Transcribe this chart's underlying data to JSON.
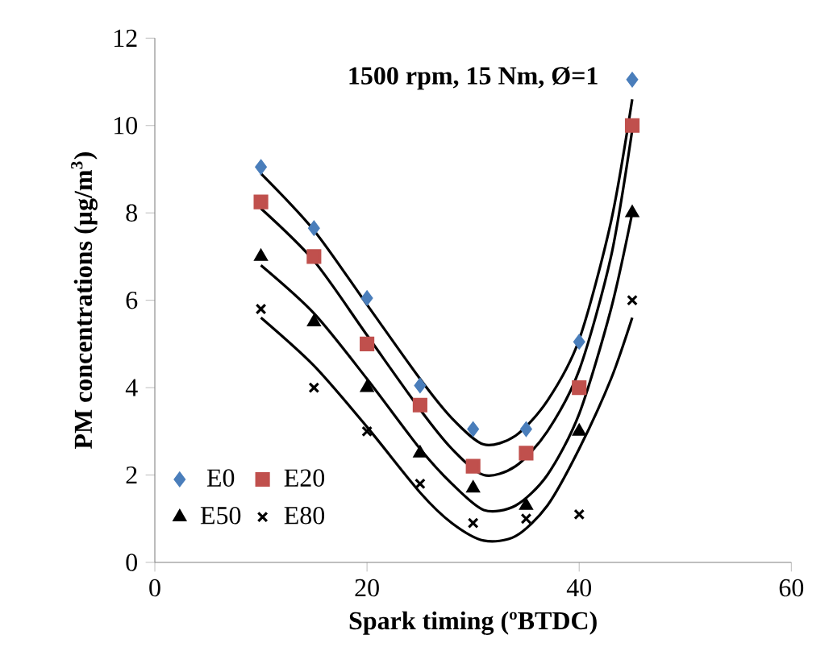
{
  "chart_data": {
    "type": "scatter",
    "title": "1500 rpm, 15 Nm, Ø=1",
    "xlabel": "Spark timing (ºBTDC)",
    "ylabel": "PM concentrations (µg/m$^{3}$)",
    "xlim": [
      0,
      60
    ],
    "xticks": [
      0,
      20,
      40,
      60
    ],
    "ylim": [
      0,
      12
    ],
    "yticks": [
      0,
      2,
      4,
      6,
      8,
      10,
      12
    ],
    "grid": false,
    "legend": "bottom left",
    "series": [
      {
        "name": "E0",
        "color": "#4a7ebb",
        "marker": "diamond",
        "x": [
          10,
          15,
          20,
          25,
          30,
          35,
          40,
          45
        ],
        "values": [
          9.05,
          7.65,
          6.05,
          4.05,
          3.05,
          3.05,
          5.05,
          11.05
        ]
      },
      {
        "name": "E20",
        "color": "#c0504d",
        "marker": "square",
        "x": [
          10,
          15,
          20,
          25,
          30,
          35,
          40,
          45
        ],
        "values": [
          8.25,
          7.0,
          5.0,
          3.6,
          2.2,
          2.5,
          4.0,
          10.0
        ]
      },
      {
        "name": "E50",
        "color": "#000000",
        "marker": "triangle",
        "x": [
          10,
          15,
          20,
          25,
          30,
          35,
          40,
          45
        ],
        "values": [
          7.0,
          5.5,
          4.0,
          2.5,
          1.7,
          1.3,
          3.0,
          8.0
        ]
      },
      {
        "name": "E80",
        "color": "#000000",
        "marker": "cross",
        "x": [
          10,
          15,
          20,
          25,
          30,
          35,
          40,
          45
        ],
        "values": [
          5.8,
          4.0,
          3.0,
          1.8,
          0.9,
          1.0,
          1.1,
          6.0
        ]
      },
      {
        "type": "line",
        "color": "#000000",
        "marker": "none",
        "x": [
          10,
          15,
          20,
          25,
          28,
          31,
          34,
          37,
          40,
          43,
          45
        ],
        "values": [
          8.9,
          7.6,
          5.9,
          4.2,
          3.3,
          2.7,
          2.9,
          3.7,
          5.1,
          7.8,
          10.6
        ]
      },
      {
        "type": "line",
        "color": "#000000",
        "marker": "none",
        "x": [
          10,
          15,
          20,
          25,
          28,
          31,
          34,
          37,
          40,
          43,
          45
        ],
        "values": [
          8.1,
          6.9,
          5.2,
          3.5,
          2.6,
          2.0,
          2.2,
          3.0,
          4.4,
          7.0,
          9.9
        ]
      },
      {
        "type": "line",
        "color": "#000000",
        "marker": "none",
        "x": [
          10,
          15,
          20,
          25,
          28,
          31,
          34,
          37,
          40,
          43,
          45
        ],
        "values": [
          6.8,
          5.7,
          4.2,
          2.6,
          1.8,
          1.2,
          1.3,
          2.0,
          3.4,
          5.8,
          8.0
        ]
      },
      {
        "type": "line",
        "color": "#000000",
        "marker": "none",
        "x": [
          10,
          15,
          20,
          25,
          28,
          31,
          34,
          37,
          40,
          43,
          45
        ],
        "values": [
          5.6,
          4.5,
          3.1,
          1.6,
          0.9,
          0.5,
          0.6,
          1.3,
          2.6,
          4.2,
          5.6
        ]
      }
    ]
  }
}
